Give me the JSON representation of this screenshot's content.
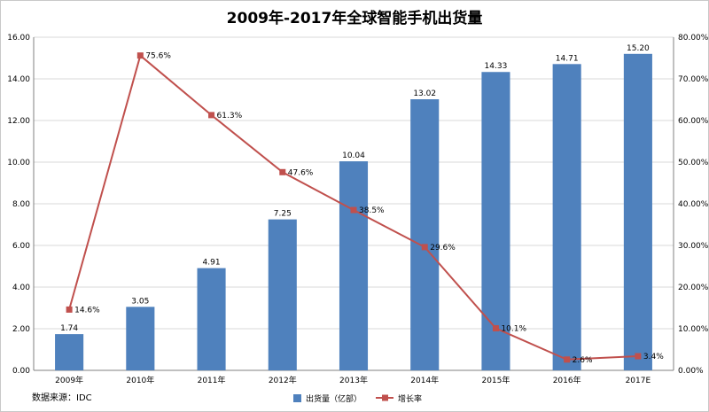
{
  "chart_data": {
    "type": "bar",
    "title": "2009年-2017年全球智能手机出货量",
    "categories": [
      "2009年",
      "2010年",
      "2011年",
      "2012年",
      "2013年",
      "2014年",
      "2015年",
      "2016年",
      "2017E"
    ],
    "series": [
      {
        "name": "出货量（亿部）",
        "type": "bar",
        "axis": "left",
        "color": "#4f81bd",
        "values": [
          1.74,
          3.05,
          4.91,
          7.25,
          10.04,
          13.02,
          14.33,
          14.71,
          15.2
        ],
        "labels": [
          "1.74",
          "3.05",
          "4.91",
          "7.25",
          "10.04",
          "13.02",
          "14.33",
          "14.71",
          "15.20"
        ]
      },
      {
        "name": "增长率",
        "type": "line",
        "axis": "right",
        "color": "#c0504d",
        "values": [
          14.6,
          75.6,
          61.3,
          47.6,
          38.5,
          29.6,
          10.1,
          2.6,
          3.4
        ],
        "labels": [
          "14.6%",
          "75.6%",
          "61.3%",
          "47.6%",
          "38.5%",
          "29.6%",
          "10.1%",
          "2.6%",
          "3.4%"
        ]
      }
    ],
    "y_left": {
      "min": 0,
      "max": 16,
      "step": 2,
      "tick_labels": [
        "0.00",
        "2.00",
        "4.00",
        "6.00",
        "8.00",
        "10.00",
        "12.00",
        "14.00",
        "16.00"
      ]
    },
    "y_right": {
      "min": 0,
      "max": 80,
      "step": 10,
      "tick_labels": [
        "0.00%",
        "10.00%",
        "20.00%",
        "30.00%",
        "40.00%",
        "50.00%",
        "60.00%",
        "70.00%",
        "80.00%"
      ]
    },
    "grid": true,
    "legend_position": "bottom-center",
    "source": "数据来源：IDC"
  }
}
